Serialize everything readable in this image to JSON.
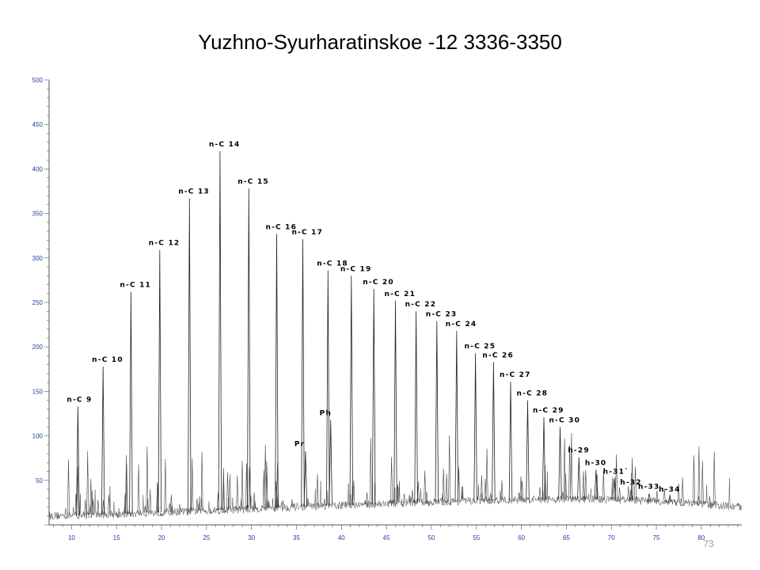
{
  "title": "Yuzhno-Syurharatinskoe -12 3336-3350",
  "page_number": "73",
  "chart_data": {
    "type": "line",
    "title": "Yuzhno-Syurharatinskoe -12 3336-3350",
    "xlabel": "",
    "ylabel": "",
    "xlim": [
      7.5,
      84.5
    ],
    "ylim": [
      0,
      500
    ],
    "x_ticks": [
      "10",
      "15",
      "20",
      "25",
      "30",
      "35",
      "40",
      "45",
      "50",
      "55",
      "60",
      "65",
      "70",
      "75",
      "80"
    ],
    "y_ticks": [
      "50",
      "100",
      "150",
      "200",
      "250",
      "300",
      "350",
      "400",
      "450",
      "500"
    ],
    "grid": false,
    "peaks": [
      {
        "label": "n-C 9",
        "x": 10.7,
        "y": 133
      },
      {
        "label": "n-C 10",
        "x": 13.5,
        "y": 178
      },
      {
        "label": "n-C 11",
        "x": 16.6,
        "y": 262
      },
      {
        "label": "n-C 12",
        "x": 19.8,
        "y": 309
      },
      {
        "label": "n-C 13",
        "x": 23.1,
        "y": 367
      },
      {
        "label": "n-C 14",
        "x": 26.5,
        "y": 420
      },
      {
        "label": "n-C 15",
        "x": 29.7,
        "y": 378
      },
      {
        "label": "n-C 16",
        "x": 32.8,
        "y": 327
      },
      {
        "label": "n-C 17",
        "x": 35.7,
        "y": 321
      },
      {
        "label": "Pr",
        "x": 36.0,
        "y": 83
      },
      {
        "label": "n-C 18",
        "x": 38.5,
        "y": 286
      },
      {
        "label": "Ph",
        "x": 38.8,
        "y": 118
      },
      {
        "label": "n-C 19",
        "x": 41.1,
        "y": 280
      },
      {
        "label": "n-C 20",
        "x": 43.6,
        "y": 265
      },
      {
        "label": "n-C 21",
        "x": 46.0,
        "y": 252
      },
      {
        "label": "n-C 22",
        "x": 48.3,
        "y": 240
      },
      {
        "label": "n-C 23",
        "x": 50.6,
        "y": 229
      },
      {
        "label": "n-C 24",
        "x": 52.8,
        "y": 218
      },
      {
        "label": "n-C 25",
        "x": 54.9,
        "y": 193
      },
      {
        "label": "n-C 26",
        "x": 56.9,
        "y": 183
      },
      {
        "label": "n-C 27",
        "x": 58.8,
        "y": 161
      },
      {
        "label": "n-C 28",
        "x": 60.7,
        "y": 140
      },
      {
        "label": "n-C 29",
        "x": 62.5,
        "y": 121
      },
      {
        "label": "n-C 30",
        "x": 64.3,
        "y": 110
      },
      {
        "label": "h-29",
        "x": 66.4,
        "y": 76
      },
      {
        "label": "h-30",
        "x": 68.3,
        "y": 62
      },
      {
        "label": "h-31`",
        "x": 70.3,
        "y": 52
      },
      {
        "label": "h-32",
        "x": 72.2,
        "y": 40
      },
      {
        "label": "h-33",
        "x": 74.2,
        "y": 35
      },
      {
        "label": "h-34",
        "x": 76.5,
        "y": 32
      }
    ],
    "baseline": [
      {
        "x": 7.5,
        "y": 10
      },
      {
        "x": 15,
        "y": 12
      },
      {
        "x": 25,
        "y": 16
      },
      {
        "x": 35,
        "y": 20
      },
      {
        "x": 45,
        "y": 24
      },
      {
        "x": 55,
        "y": 27
      },
      {
        "x": 65,
        "y": 29
      },
      {
        "x": 72,
        "y": 28
      },
      {
        "x": 78,
        "y": 25
      },
      {
        "x": 84.5,
        "y": 20
      }
    ]
  }
}
